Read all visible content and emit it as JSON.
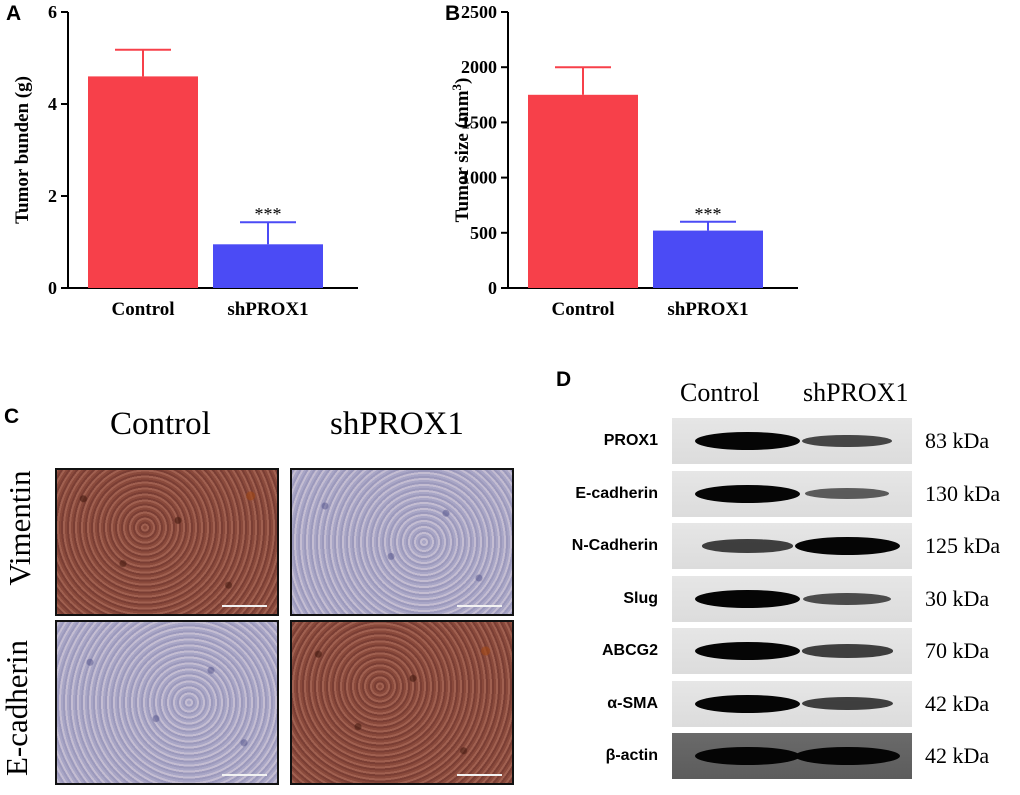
{
  "panels": {
    "a": "A",
    "b": "B",
    "c": "C",
    "d": "D"
  },
  "chart_data": [
    {
      "type": "bar",
      "panel": "A",
      "categories": [
        "Control",
        "shPROX1"
      ],
      "values": [
        4.6,
        0.95
      ],
      "errors": [
        0.58,
        0.48
      ],
      "colors": [
        "#f7404a",
        "#4b4bf5"
      ],
      "ylabel": "Tumor bunden (g)",
      "ylim": [
        0,
        6
      ],
      "yticks": [
        0,
        2,
        4,
        6
      ],
      "annotations": [
        "",
        "***"
      ]
    },
    {
      "type": "bar",
      "panel": "B",
      "categories": [
        "Control",
        "shPROX1"
      ],
      "values": [
        1750,
        520
      ],
      "errors": [
        250,
        80
      ],
      "colors": [
        "#f7404a",
        "#4b4bf5"
      ],
      "ylabel": "Tumor size (mm",
      "ylabel_sup": "3",
      "ylabel_close": ")",
      "ylim": [
        0,
        2500
      ],
      "yticks": [
        0,
        500,
        1000,
        1500,
        2000,
        2500
      ],
      "annotations": [
        "",
        "***"
      ]
    }
  ],
  "ihc": {
    "columns": [
      "Control",
      "shPROX1"
    ],
    "rows": [
      "Vimentin",
      "E-cadherin"
    ]
  },
  "western": {
    "columns": [
      "Control",
      "shPROX1"
    ],
    "bands": [
      {
        "protein": "PROX1",
        "kda": "83 kDa",
        "control": 1.0,
        "shprox1": 0.55
      },
      {
        "protein": "E-cadherin",
        "kda": "130 kDa",
        "control": 1.0,
        "shprox1": 0.4
      },
      {
        "protein": "N-Cadherin",
        "kda": "125 kDa",
        "control": 0.6,
        "shprox1": 1.0
      },
      {
        "protein": "Slug",
        "kda": "30 kDa",
        "control": 1.0,
        "shprox1": 0.5
      },
      {
        "protein": "ABCG2",
        "kda": "70 kDa",
        "control": 1.0,
        "shprox1": 0.6
      },
      {
        "protein": "α-SMA",
        "kda": "42 kDa",
        "control": 1.0,
        "shprox1": 0.6
      },
      {
        "protein": "β-actin",
        "kda": "42 kDa",
        "control": 1.0,
        "shprox1": 1.0
      }
    ]
  }
}
